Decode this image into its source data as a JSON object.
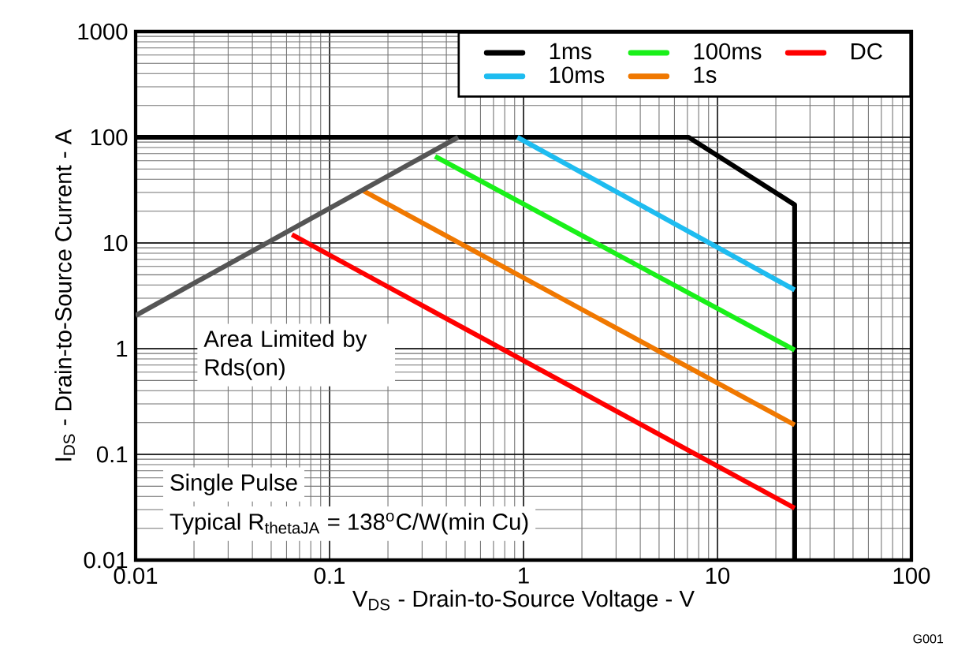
{
  "chart_data": {
    "type": "line",
    "xlabel": "V$_{DS}$ - Drain-to-Source Voltage - V",
    "ylabel": "I$_{DS}$ - Drain-to-Source Current - A",
    "log": "xy",
    "xlim": [
      0.01,
      100
    ],
    "ylim": [
      0.01,
      1000
    ],
    "xticks": [
      0.01,
      0.1,
      1,
      10,
      100
    ],
    "yticks": [
      0.01,
      0.1,
      1,
      10,
      100,
      1000
    ],
    "grid": true,
    "legend": "top right",
    "marker": "none",
    "line_style": "solid",
    "series": [
      {
        "name": "1ms",
        "color": "#000000",
        "x": [
          0.01,
          7.1,
          25,
          25
        ],
        "values": [
          100,
          100,
          23,
          0.01
        ]
      },
      {
        "name": "10ms",
        "color": "#1ebcf0",
        "x": [
          0.93,
          25
        ],
        "values": [
          100,
          3.6
        ]
      },
      {
        "name": "100ms",
        "color": "#19f019",
        "x": [
          0.35,
          25
        ],
        "values": [
          66,
          0.97
        ]
      },
      {
        "name": "1s",
        "color": "#f07800",
        "x": [
          0.15,
          25
        ],
        "values": [
          31,
          0.19
        ]
      },
      {
        "name": "DC",
        "color": "#ff0000",
        "x": [
          0.064,
          25
        ],
        "values": [
          12,
          0.031
        ]
      },
      {
        "color": "#555555",
        "x": [
          0.01,
          0.46
        ],
        "values": [
          2.06,
          100
        ]
      }
    ],
    "annotations": [
      "Area Limited by Rds(on)",
      "Single Pulse",
      "Typical R$_{thetaJA}$ = 138$^{o}$C/W(min Cu)",
      "G001"
    ]
  }
}
